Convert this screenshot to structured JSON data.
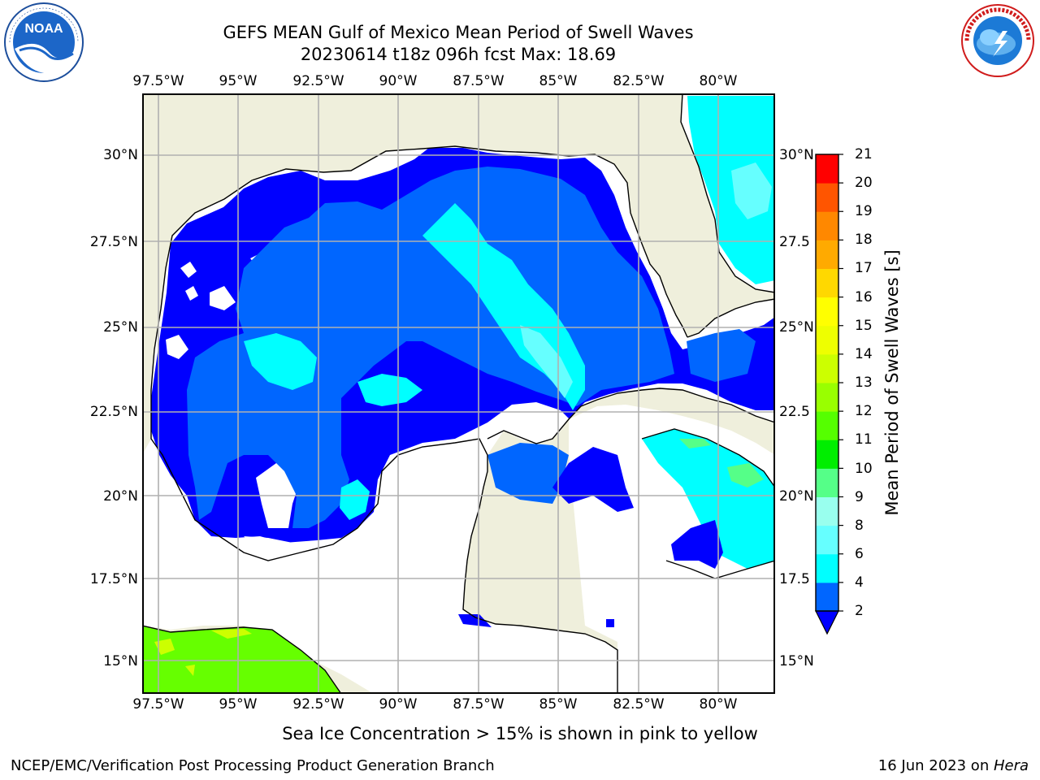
{
  "title": {
    "line1": "GEFS MEAN Gulf of Mexico Mean Period of Swell Waves",
    "line2": "20230614 t18z 096h fcst   Max: 18.69"
  },
  "logos": {
    "left": {
      "name": "noaa-logo",
      "text": "NOAA",
      "ring_text": "NATIONAL OCEANIC AND ATMOSPHERIC ADMINISTRATION · U.S. DEPARTMENT OF COMMERCE"
    },
    "right": {
      "name": "nws-logo",
      "ring_text": "NATIONAL WEATHER SERVICE"
    }
  },
  "map": {
    "lon_labels": [
      "97.5°W",
      "95°W",
      "92.5°W",
      "90°W",
      "87.5°W",
      "85°W",
      "82.5°W",
      "80°W"
    ],
    "lat_labels_left": [
      "30°N",
      "27.5°N",
      "25°N",
      "22.5°N",
      "20°N",
      "17.5°N",
      "15°N"
    ],
    "lat_labels_right": [
      "30°N",
      "27.5",
      "25°N",
      "22.5",
      "20°N",
      "17.5",
      "15°N"
    ],
    "lon_range": [
      -98,
      -78.25
    ],
    "lat_range": [
      14,
      31.6
    ],
    "colors": {
      "land": "#efefdc",
      "coast": "#000000",
      "grid": "#b0b0b0",
      "nodata": "#ffffff"
    }
  },
  "colorbar": {
    "label": "Mean Period of Swell Waves [s]",
    "ticks": [
      "2",
      "4",
      "6",
      "8",
      "9",
      "10",
      "11",
      "12",
      "13",
      "14",
      "15",
      "16",
      "17",
      "18",
      "19",
      "20",
      "21"
    ],
    "colors": [
      "#0066ff",
      "#00ccff",
      "#00ffff",
      "#66ffff",
      "#99ffee",
      "#55ff88",
      "#22ee44",
      "#00dd00",
      "#44ee00",
      "#99ff00",
      "#ccff00",
      "#eeff00",
      "#ffff00",
      "#ffee00",
      "#ffcc00",
      "#ffaa00",
      "#ff8800",
      "#ff6600",
      "#ff4400",
      "#ff2200",
      "#ff0000"
    ],
    "under_color": "#0000ff"
  },
  "footer": {
    "subtitle": "Sea Ice Concentration > 15% is shown in pink to yellow",
    "left": "NCEP/EMC/Verification Post Processing Product Generation Branch",
    "date": "16 Jun 2023 on ",
    "machine": "Hera"
  }
}
